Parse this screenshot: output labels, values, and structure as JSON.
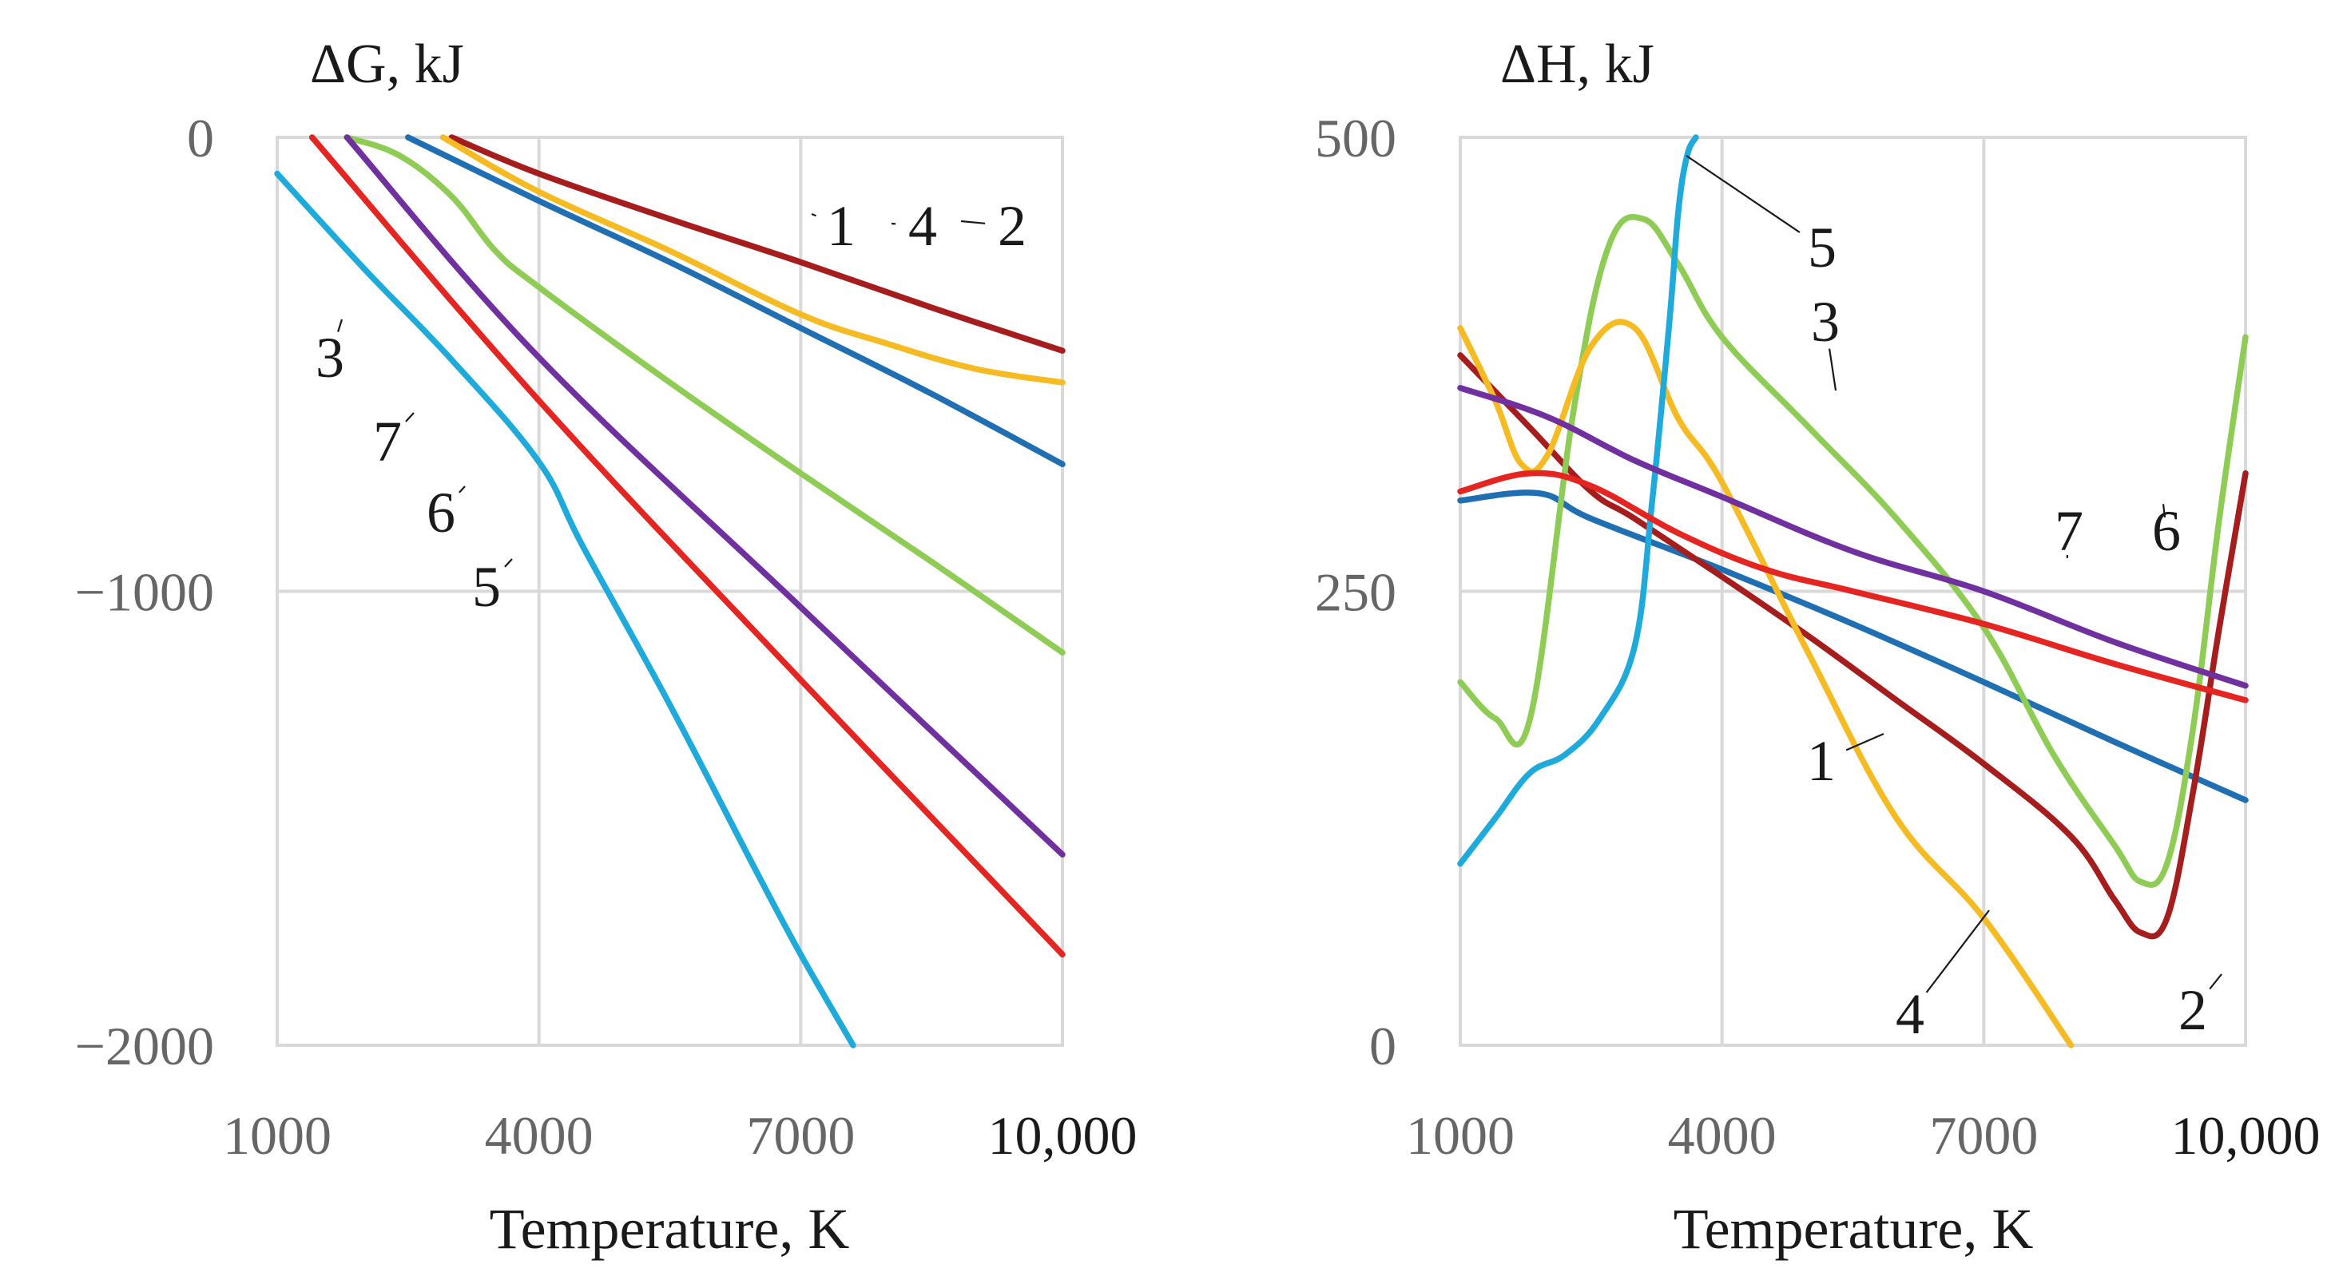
{
  "chart_data": [
    {
      "type": "line",
      "title": "",
      "ylabel": "ΔG, kJ",
      "xlabel": "Temperature, K",
      "xlim": [
        1000,
        10000
      ],
      "ylim": [
        -2000,
        0
      ],
      "xticks": [
        1000,
        4000,
        7000,
        10000
      ],
      "xtick_labels": [
        "1000",
        "4000",
        "7000",
        "10,000"
      ],
      "yticks": [
        0,
        -1000,
        -2000
      ],
      "ytick_labels": [
        "0",
        "−1000",
        "−2000"
      ],
      "grid": true,
      "legend": "none (series identified by numbered callouts)",
      "series": [
        {
          "name": "1",
          "color": "#1f6fb2",
          "x": [
            2500,
            4000,
            5500,
            7000,
            8500,
            10000
          ],
          "y": [
            0,
            -140,
            -275,
            -420,
            -565,
            -720
          ],
          "callout": {
            "text": "1",
            "x": 6500,
            "y": -420
          }
        },
        {
          "name": "2",
          "color": "#a51d1d",
          "x": [
            3000,
            4000,
            5500,
            7000,
            8500,
            10000
          ],
          "y": [
            0,
            -80,
            -180,
            -275,
            -375,
            -470
          ],
          "callout": {
            "text": "2",
            "x": 8600,
            "y": -390
          }
        },
        {
          "name": "3",
          "color": "#8fcc55",
          "x": [
            1800,
            2400,
            3000,
            3500,
            4000,
            5500,
            7000,
            8500,
            10000
          ],
          "y": [
            0,
            -40,
            -130,
            -250,
            -330,
            -540,
            -740,
            -935,
            -1135
          ],
          "callout": {
            "text": "3",
            "x": 3000,
            "y": -130
          }
        },
        {
          "name": "4",
          "color": "#f6bb22",
          "x": [
            2900,
            4000,
            5500,
            7000,
            8000,
            9000,
            10000
          ],
          "y": [
            0,
            -120,
            -250,
            -390,
            -455,
            -510,
            -540
          ],
          "callout": {
            "text": "4",
            "x": 7200,
            "y": -410
          }
        },
        {
          "name": "5",
          "color": "#1eaadb",
          "x": [
            1000,
            2000,
            3000,
            4000,
            4500,
            5500,
            6500,
            7000,
            7600
          ],
          "y": [
            -80,
            -290,
            -490,
            -715,
            -900,
            -1250,
            -1620,
            -1800,
            -2000
          ],
          "callout": {
            "text": "5",
            "x": 4200,
            "y": -820
          }
        },
        {
          "name": "6",
          "color": "#e52521",
          "x": [
            1400,
            4000,
            7000,
            10000
          ],
          "y": [
            0,
            -580,
            -1195,
            -1800
          ],
          "callout": {
            "text": "6",
            "x": 4000,
            "y": -580
          }
        },
        {
          "name": "7",
          "color": "#7030a0",
          "x": [
            1800,
            4000,
            7000,
            10000
          ],
          "y": [
            0,
            -485,
            -1035,
            -1580
          ],
          "callout": {
            "text": "7",
            "x": 3200,
            "y": -375
          }
        }
      ]
    },
    {
      "type": "line",
      "title": "",
      "ylabel": "ΔH, kJ",
      "xlabel": "Temperature, K",
      "xlim": [
        1000,
        10000
      ],
      "ylim": [
        0,
        500
      ],
      "xticks": [
        1000,
        4000,
        7000,
        10000
      ],
      "xtick_labels": [
        "1000",
        "4000",
        "7000",
        "10,000"
      ],
      "yticks": [
        500,
        250,
        0
      ],
      "ytick_labels": [
        "500",
        "250",
        "0"
      ],
      "grid": true,
      "legend": "none (series identified by numbered callouts)",
      "series": [
        {
          "name": "1",
          "color": "#1f6fb2",
          "x": [
            1000,
            1900,
            2500,
            4000,
            5500,
            7000,
            8500,
            10000
          ],
          "y": [
            300,
            304,
            290,
            262,
            232,
            200,
            167,
            135
          ],
          "callout": {
            "text": "1",
            "x": 5400,
            "y": 210
          }
        },
        {
          "name": "2",
          "color": "#a51d1d",
          "x": [
            1000,
            1800,
            2500,
            3000,
            4000,
            5000,
            6000,
            7000,
            8000,
            8500,
            8800,
            9100,
            9400,
            9700,
            10000
          ],
          "y": [
            380,
            340,
            305,
            290,
            258,
            225,
            190,
            155,
            115,
            80,
            62,
            70,
            140,
            230,
            315
          ],
          "callout": {
            "text": "2",
            "x": 8850,
            "y": 62
          }
        },
        {
          "name": "3",
          "color": "#8fcc55",
          "x": [
            1000,
            1400,
            1800,
            2300,
            2700,
            3100,
            3500,
            4000,
            5000,
            6000,
            7000,
            7800,
            8500,
            8800,
            9100,
            9400,
            9700,
            10000
          ],
          "y": [
            200,
            180,
            180,
            350,
            440,
            455,
            430,
            390,
            340,
            290,
            230,
            160,
            110,
            90,
            100,
            175,
            290,
            390
          ],
          "callout": {
            "text": "3",
            "x": 4500,
            "y": 360
          }
        },
        {
          "name": "4",
          "color": "#f6bb22",
          "x": [
            1000,
            1400,
            1700,
            2000,
            2500,
            3000,
            3500,
            4000,
            5000,
            6000,
            7000,
            8000
          ],
          "y": [
            395,
            355,
            320,
            325,
            385,
            395,
            345,
            310,
            215,
            125,
            70,
            0
          ],
          "callout": {
            "text": "4",
            "x": 7000,
            "y": 70
          }
        },
        {
          "name": "5",
          "color": "#1eaadb",
          "x": [
            1000,
            1400,
            1800,
            2200,
            2600,
            3000,
            3200,
            3400,
            3500,
            3600,
            3700
          ],
          "y": [
            100,
            125,
            150,
            160,
            180,
            220,
            300,
            400,
            460,
            490,
            500
          ],
          "callout": {
            "text": "5",
            "x": 3700,
            "y": 490
          }
        },
        {
          "name": "6",
          "color": "#e52521",
          "x": [
            1000,
            1800,
            2500,
            3500,
            4500,
            5500,
            7000,
            8500,
            10000
          ],
          "y": [
            305,
            315,
            308,
            282,
            262,
            250,
            232,
            210,
            190
          ],
          "callout": {
            "text": "6",
            "x": 8300,
            "y": 215
          }
        },
        {
          "name": "7",
          "color": "#7030a0",
          "x": [
            1000,
            2000,
            3000,
            4000,
            5500,
            7000,
            8500,
            10000
          ],
          "y": [
            362,
            346,
            322,
            302,
            272,
            250,
            222,
            198
          ],
          "callout": {
            "text": "7",
            "x": 7300,
            "y": 250
          }
        }
      ]
    }
  ]
}
